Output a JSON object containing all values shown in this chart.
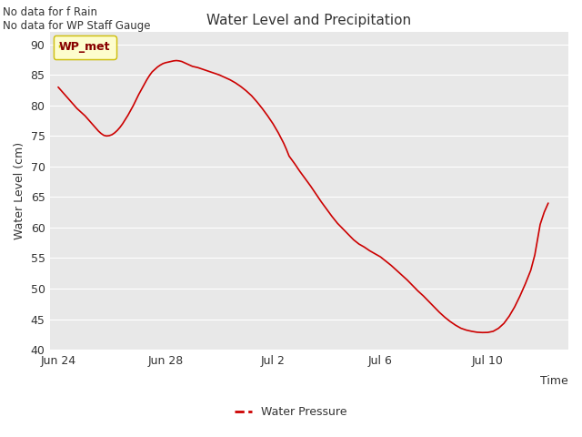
{
  "title": "Water Level and Precipitation",
  "ylabel": "Water Level (cm)",
  "xlabel": "Time",
  "ylim": [
    40,
    92
  ],
  "plot_bg_color": "#e8e8e8",
  "fig_bg_color": "#ffffff",
  "line_color": "#cc0000",
  "legend_label": "Water Pressure",
  "no_data_text1": "No data for f Rain",
  "no_data_text2": "No data for WP Staff Gauge",
  "wp_met_label": "WP_met",
  "x_tick_labels": [
    "Jun 24",
    "Jun 28",
    "Jul 2",
    "Jul 6",
    "Jul 10"
  ],
  "x_tick_positions": [
    0,
    4,
    8,
    12,
    16
  ],
  "yticks": [
    40,
    45,
    50,
    55,
    60,
    65,
    70,
    75,
    80,
    85,
    90
  ],
  "grid_color": "#ffffff",
  "data_x": [
    0.0,
    0.1,
    0.2,
    0.3,
    0.4,
    0.5,
    0.6,
    0.7,
    0.8,
    0.9,
    1.0,
    1.1,
    1.2,
    1.3,
    1.4,
    1.5,
    1.6,
    1.7,
    1.8,
    1.9,
    2.0,
    2.1,
    2.2,
    2.3,
    2.4,
    2.5,
    2.6,
    2.7,
    2.8,
    2.9,
    3.0,
    3.1,
    3.2,
    3.3,
    3.4,
    3.5,
    3.6,
    3.7,
    3.8,
    3.9,
    4.0,
    4.1,
    4.2,
    4.3,
    4.4,
    4.5,
    4.6,
    4.7,
    4.8,
    4.9,
    5.0,
    5.2,
    5.4,
    5.6,
    5.8,
    6.0,
    6.2,
    6.4,
    6.6,
    6.8,
    7.0,
    7.2,
    7.4,
    7.6,
    7.8,
    8.0,
    8.2,
    8.4,
    8.5,
    8.6,
    8.8,
    9.0,
    9.2,
    9.4,
    9.6,
    9.8,
    10.0,
    10.2,
    10.4,
    10.6,
    10.8,
    11.0,
    11.2,
    11.4,
    11.6,
    11.8,
    12.0,
    12.2,
    12.4,
    12.6,
    12.8,
    13.0,
    13.2,
    13.4,
    13.6,
    13.8,
    14.0,
    14.2,
    14.4,
    14.6,
    14.8,
    15.0,
    15.2,
    15.4,
    15.6,
    15.8,
    16.0,
    16.2,
    16.4,
    16.6,
    16.8,
    17.0,
    17.2,
    17.4,
    17.6,
    17.75,
    17.85,
    17.95,
    18.1,
    18.25
  ],
  "data_y": [
    83.0,
    82.5,
    82.0,
    81.5,
    81.0,
    80.5,
    80.0,
    79.5,
    79.1,
    78.7,
    78.3,
    77.8,
    77.3,
    76.8,
    76.3,
    75.8,
    75.4,
    75.1,
    75.0,
    75.05,
    75.2,
    75.5,
    75.9,
    76.4,
    77.0,
    77.7,
    78.4,
    79.2,
    80.0,
    80.9,
    81.8,
    82.6,
    83.4,
    84.2,
    84.9,
    85.5,
    85.9,
    86.3,
    86.6,
    86.85,
    87.0,
    87.1,
    87.2,
    87.3,
    87.35,
    87.3,
    87.2,
    87.0,
    86.8,
    86.6,
    86.4,
    86.2,
    85.9,
    85.6,
    85.3,
    85.0,
    84.6,
    84.2,
    83.7,
    83.1,
    82.4,
    81.6,
    80.6,
    79.5,
    78.3,
    77.0,
    75.5,
    73.8,
    72.8,
    71.7,
    70.5,
    69.2,
    68.0,
    66.8,
    65.5,
    64.2,
    63.0,
    61.8,
    60.7,
    59.8,
    58.9,
    58.0,
    57.3,
    56.8,
    56.2,
    55.7,
    55.2,
    54.5,
    53.8,
    53.0,
    52.2,
    51.4,
    50.5,
    49.6,
    48.8,
    47.9,
    47.0,
    46.1,
    45.3,
    44.6,
    44.0,
    43.5,
    43.2,
    43.0,
    42.85,
    42.8,
    42.82,
    43.0,
    43.5,
    44.3,
    45.5,
    47.0,
    48.8,
    50.8,
    53.0,
    55.5,
    58.0,
    60.5,
    62.5,
    64.0
  ]
}
